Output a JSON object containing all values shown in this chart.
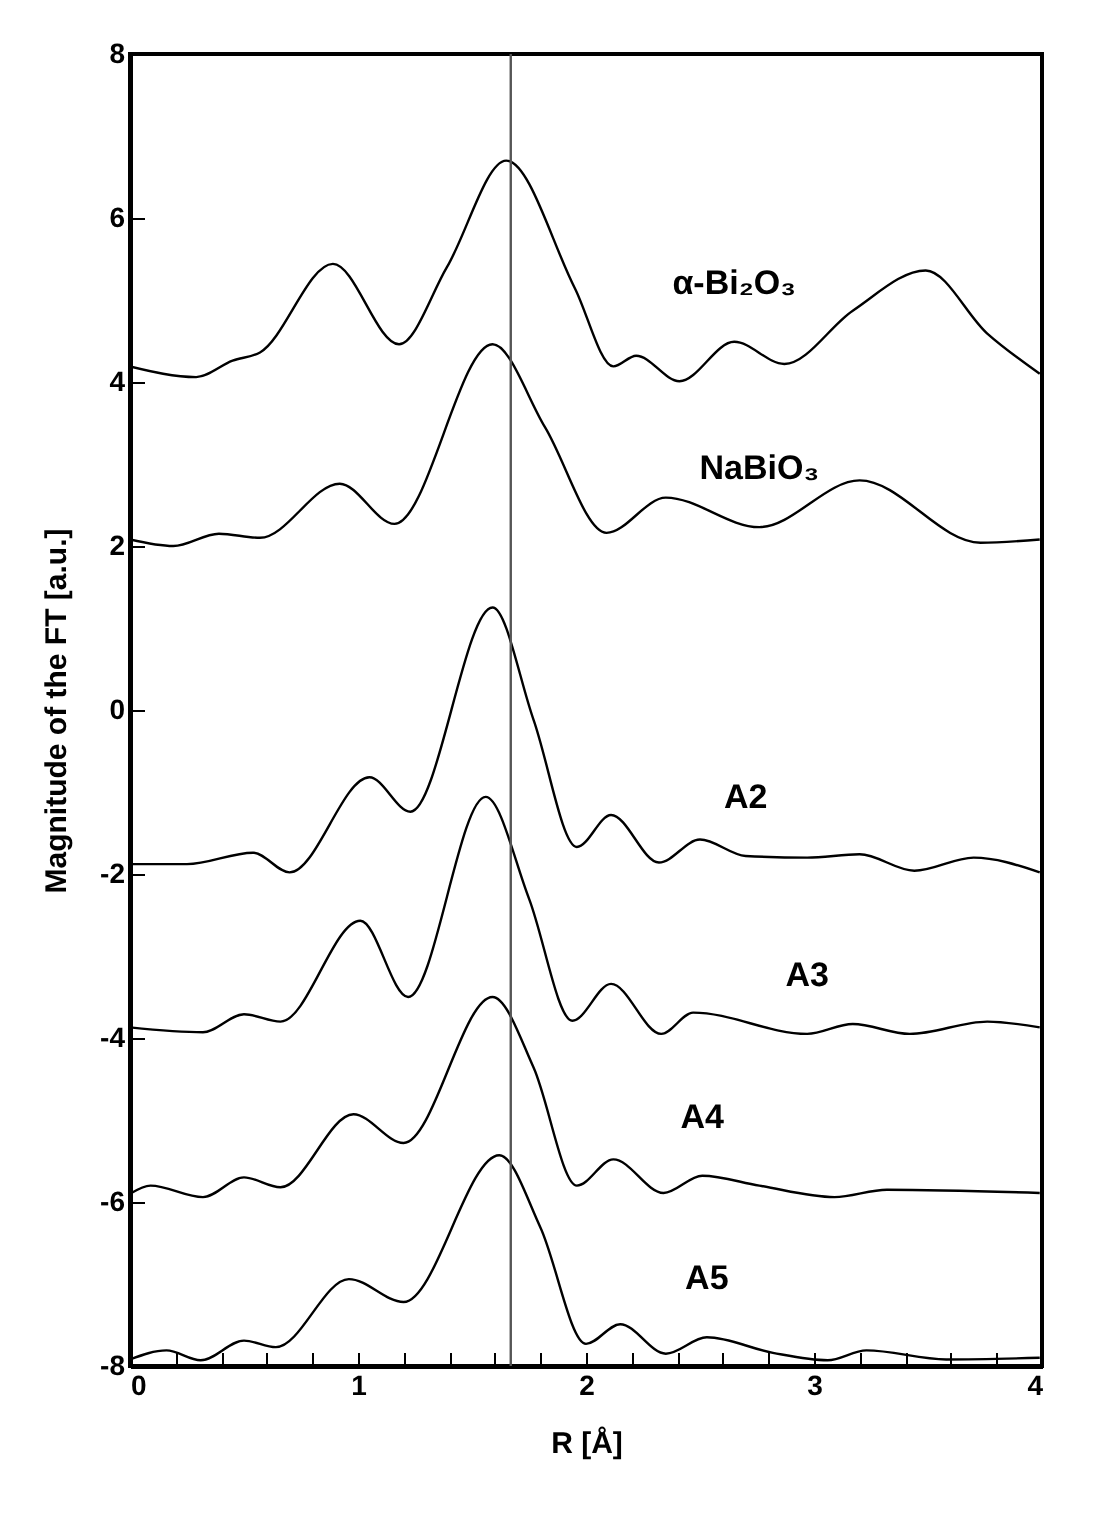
{
  "chart_data": {
    "type": "line",
    "xlabel": "R [Å]",
    "ylabel": "Magnitude of the FT [a.u.]",
    "xlim": [
      0,
      4
    ],
    "ylim": [
      -8,
      8
    ],
    "xticks": [
      0,
      {
        "value": 0.2,
        "label": null
      },
      {
        "value": 0.4,
        "label": null
      },
      {
        "value": 0.6,
        "label": null
      },
      {
        "value": 0.8,
        "label": null
      },
      1,
      {
        "value": 1.2,
        "label": null
      },
      {
        "value": 1.4,
        "label": null
      },
      {
        "value": 1.6,
        "label": null
      },
      {
        "value": 1.8,
        "label": null
      },
      2,
      {
        "value": 2.2,
        "label": null
      },
      {
        "value": 2.4,
        "label": null
      },
      {
        "value": 2.6,
        "label": null
      },
      {
        "value": 2.8,
        "label": null
      },
      3,
      {
        "value": 3.2,
        "label": null
      },
      {
        "value": 3.4,
        "label": null
      },
      {
        "value": 3.6,
        "label": null
      },
      {
        "value": 3.8,
        "label": null
      },
      4
    ],
    "yticks": [
      -8,
      -6,
      -4,
      -2,
      0,
      2,
      4,
      6,
      8
    ],
    "grid": false,
    "legend": false,
    "marker": "none",
    "line_style": "solid",
    "ref_lines": [
      {
        "axis": "x",
        "value": 1.67,
        "color": "#555555"
      }
    ],
    "series": [
      {
        "name": "α-Bi₂O₃",
        "color": "#000000",
        "x": [
          0,
          0.29,
          0.45,
          0.57,
          0.89,
          1.18,
          1.39,
          1.65,
          1.95,
          2.12,
          2.22,
          2.41,
          2.65,
          2.87,
          3.17,
          3.49,
          3.76,
          3.99
        ],
        "values": [
          4.19,
          4.06,
          4.26,
          4.36,
          5.44,
          4.46,
          5.4,
          6.7,
          5.15,
          4.19,
          4.32,
          4.01,
          4.49,
          4.22,
          4.87,
          5.36,
          4.59,
          4.1
        ]
      },
      {
        "name": "NaBiO₃",
        "color": "#000000",
        "x": [
          0,
          0.19,
          0.39,
          0.57,
          0.92,
          1.16,
          1.59,
          1.82,
          2.09,
          2.35,
          2.76,
          3.2,
          3.73,
          3.99
        ],
        "values": [
          2.08,
          2.0,
          2.15,
          2.1,
          2.76,
          2.27,
          4.46,
          3.45,
          2.16,
          2.59,
          2.23,
          2.8,
          2.04,
          2.08
        ]
      },
      {
        "name": "A2",
        "color": "#000000",
        "x": [
          0,
          0.25,
          0.54,
          0.7,
          1.05,
          1.23,
          1.59,
          1.77,
          1.96,
          2.11,
          2.32,
          2.5,
          2.7,
          2.97,
          3.2,
          3.44,
          3.7,
          3.99
        ],
        "values": [
          -1.88,
          -1.88,
          -1.74,
          -1.98,
          -0.82,
          -1.24,
          1.25,
          -0.12,
          -1.67,
          -1.28,
          -1.86,
          -1.58,
          -1.78,
          -1.8,
          -1.76,
          -1.96,
          -1.8,
          -1.98
        ]
      },
      {
        "name": "A3",
        "color": "#000000",
        "x": [
          0,
          0.32,
          0.5,
          0.66,
          1.01,
          1.22,
          1.56,
          1.75,
          1.94,
          2.11,
          2.33,
          2.47,
          2.97,
          3.17,
          3.42,
          3.76,
          3.99
        ],
        "values": [
          -3.87,
          -3.93,
          -3.71,
          -3.8,
          -2.57,
          -3.5,
          -1.06,
          -2.3,
          -3.79,
          -3.34,
          -3.95,
          -3.69,
          -3.95,
          -3.83,
          -3.95,
          -3.8,
          -3.87
        ]
      },
      {
        "name": "A4",
        "color": "#000000",
        "x": [
          0,
          0.09,
          0.32,
          0.5,
          0.66,
          0.98,
          1.2,
          1.59,
          1.77,
          1.96,
          2.12,
          2.34,
          2.51,
          2.76,
          3.09,
          3.32,
          3.99
        ],
        "values": [
          -5.9,
          -5.8,
          -5.94,
          -5.7,
          -5.82,
          -4.93,
          -5.28,
          -3.5,
          -4.36,
          -5.8,
          -5.48,
          -5.89,
          -5.68,
          -5.8,
          -5.94,
          -5.85,
          -5.89
        ]
      },
      {
        "name": "A5",
        "color": "#000000",
        "x": [
          0,
          0.16,
          0.31,
          0.5,
          0.64,
          0.96,
          1.2,
          1.62,
          1.8,
          2.0,
          2.15,
          2.35,
          2.53,
          2.82,
          3.06,
          3.23,
          3.58,
          3.99
        ],
        "values": [
          -7.92,
          -7.81,
          -7.93,
          -7.69,
          -7.77,
          -6.94,
          -7.22,
          -5.43,
          -6.31,
          -7.73,
          -7.49,
          -7.85,
          -7.65,
          -7.84,
          -7.93,
          -7.81,
          -7.92,
          -7.9
        ]
      }
    ]
  }
}
